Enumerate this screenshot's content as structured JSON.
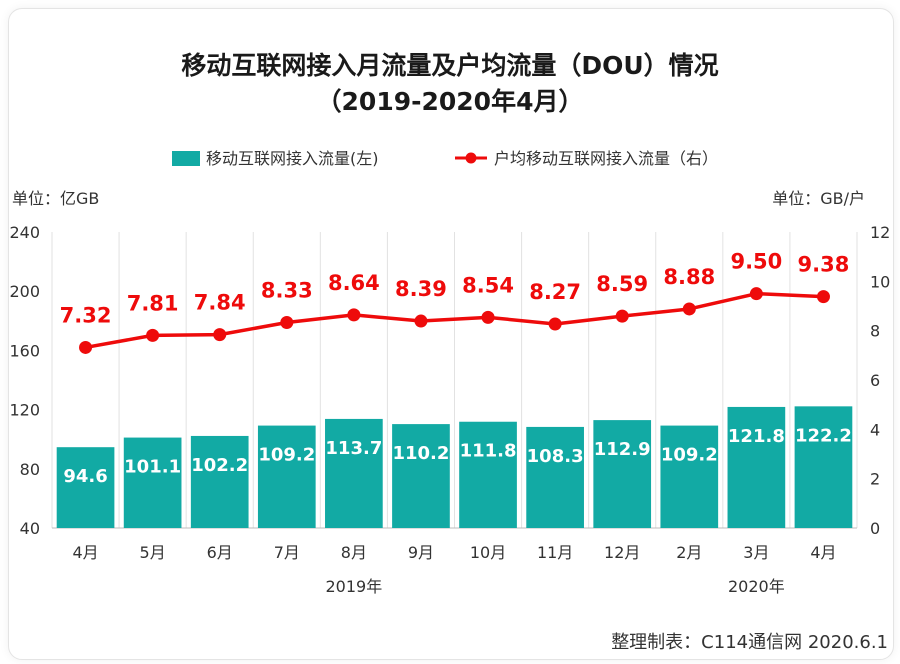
{
  "title_line1": "移动互联网接入月流量及户均流量（DOU）情况",
  "title_line2": "（2019-2020年4月）",
  "footer": "整理制表：C114通信网 2020.6.1",
  "colors": {
    "bar": "#12aaa4",
    "line": "#ee0b0b",
    "label_red": "#ee0b0b"
  },
  "chart_data": {
    "type": "bar+line",
    "categories": [
      "4月",
      "5月",
      "6月",
      "7月",
      "8月",
      "9月",
      "10月",
      "11月",
      "12月",
      "2月",
      "3月",
      "4月"
    ],
    "year_labels": [
      {
        "text": "2019年",
        "group": "2019"
      },
      {
        "text": "2020年",
        "group": "2020"
      }
    ],
    "bar_series": {
      "name": "移动互联网接入流量(左)",
      "values": [
        94.6,
        101.1,
        102.2,
        109.2,
        113.7,
        110.2,
        111.8,
        108.3,
        112.9,
        109.2,
        121.8,
        122.2
      ],
      "labels": [
        "94.6",
        "101.1",
        "102.2",
        "109.2",
        "113.7",
        "110.2",
        "111.8",
        "108.3",
        "112.9",
        "109.2",
        "121.8",
        "122.2"
      ]
    },
    "line_series": {
      "name": "户均移动互联网接入流量（右）",
      "values": [
        7.32,
        7.81,
        7.84,
        8.33,
        8.64,
        8.39,
        8.54,
        8.27,
        8.59,
        8.88,
        9.5,
        9.38
      ],
      "labels": [
        "7.32",
        "7.81",
        "7.84",
        "8.33",
        "8.64",
        "8.39",
        "8.54",
        "8.27",
        "8.59",
        "8.88",
        "9.50",
        "9.38"
      ]
    },
    "y_left": {
      "unit_label": "单位：亿GB",
      "min": 40,
      "max": 240,
      "ticks": [
        40,
        80,
        120,
        160,
        200,
        240
      ]
    },
    "y_right": {
      "unit_label": "单位：GB/户",
      "min": 0,
      "max": 12,
      "ticks": [
        0,
        2,
        4,
        6,
        8,
        10,
        12
      ]
    },
    "grid": "vertical",
    "legend_position": "top"
  }
}
